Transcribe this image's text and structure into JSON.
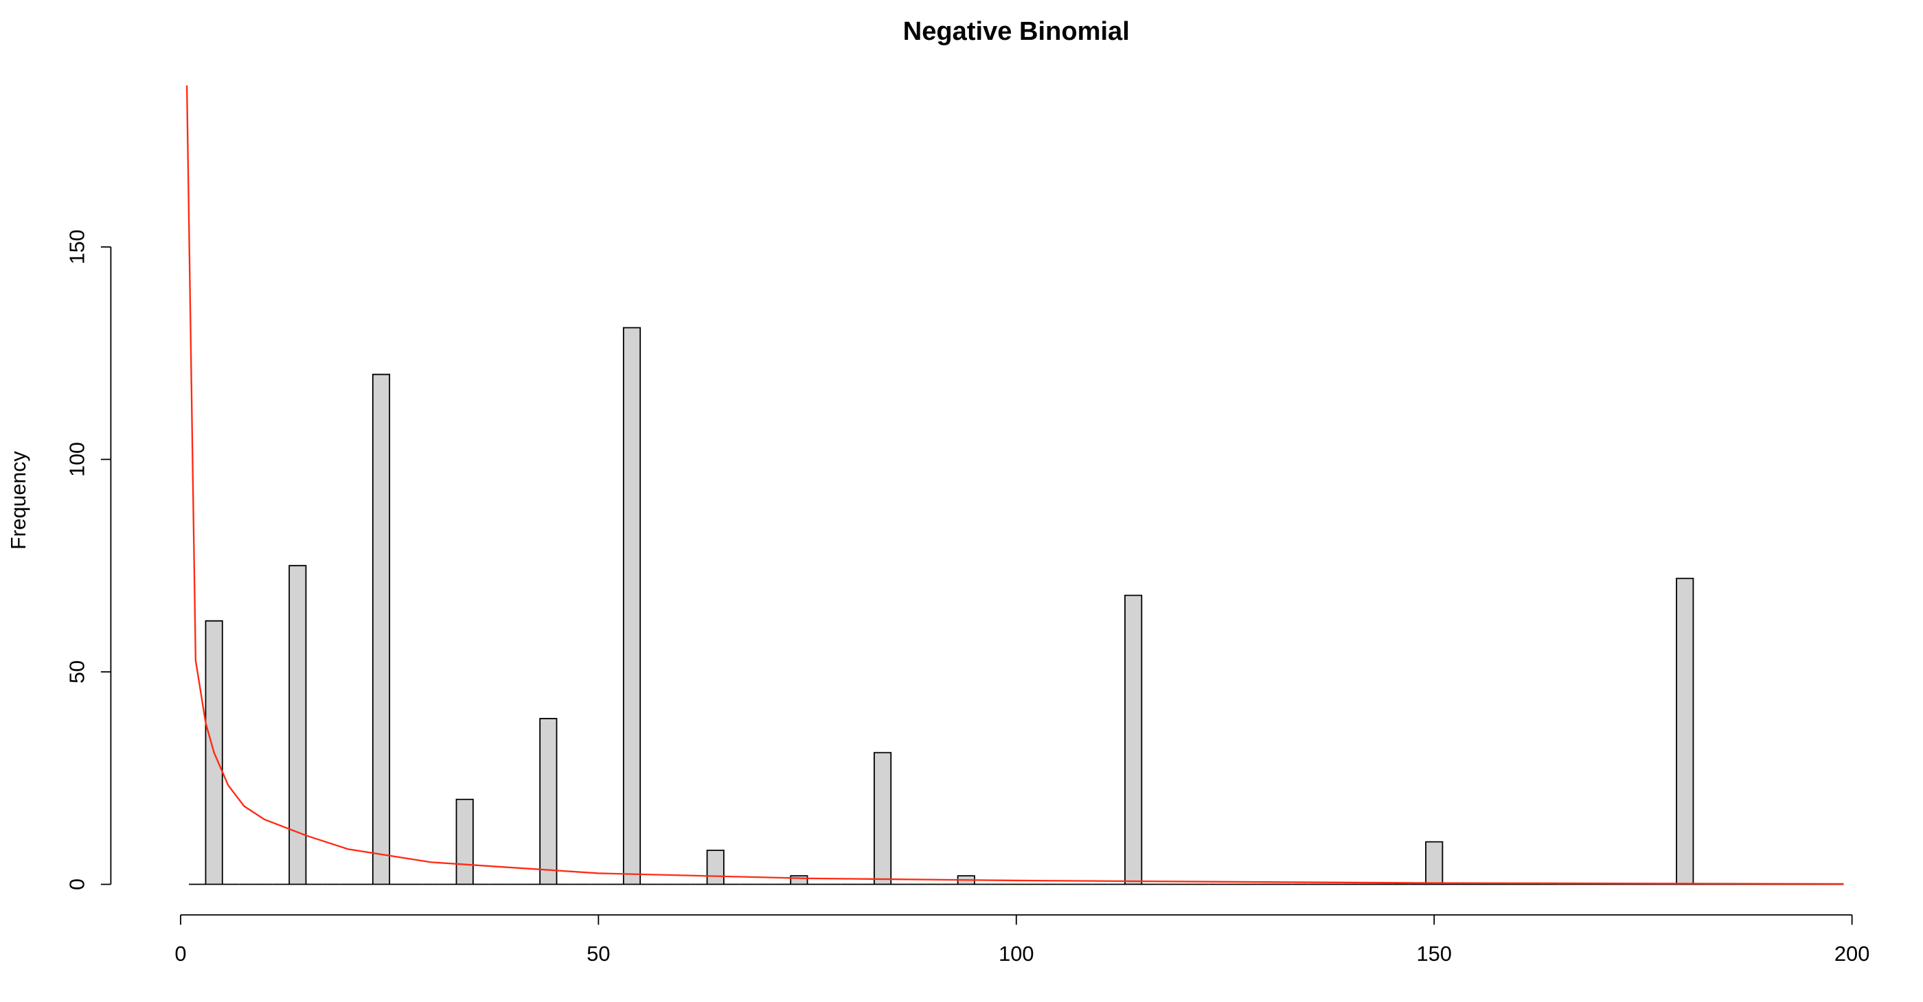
{
  "chart_data": {
    "type": "histogram",
    "title": "Negative Binomial",
    "ylabel": "Frequency",
    "bins": [
      1,
      3,
      5,
      7,
      9,
      11,
      13,
      15,
      17,
      19,
      21,
      23,
      25,
      27,
      29,
      31,
      33,
      35,
      37,
      39,
      41,
      43,
      45,
      47,
      49,
      51,
      53,
      55,
      57,
      59,
      61,
      63,
      65,
      67,
      69,
      71,
      73,
      75,
      77,
      79,
      81,
      83,
      85,
      87,
      89,
      91,
      93,
      95,
      97,
      99,
      101,
      103,
      105,
      107,
      109,
      111,
      113,
      115,
      117,
      119,
      121,
      123,
      125,
      127,
      129,
      131,
      133,
      135,
      137,
      139,
      141,
      143,
      145,
      147,
      149,
      151,
      153,
      155,
      157,
      159,
      161,
      163,
      165,
      167,
      169,
      171,
      173,
      175,
      177,
      179,
      181,
      183,
      185,
      187,
      189,
      191,
      193,
      195,
      197,
      199
    ],
    "counts": [
      0,
      62,
      0,
      0,
      0,
      0,
      75,
      0,
      0,
      0,
      0,
      120,
      0,
      0,
      0,
      0,
      20,
      0,
      0,
      0,
      0,
      39,
      0,
      0,
      0,
      0,
      131,
      0,
      0,
      0,
      0,
      8,
      0,
      0,
      0,
      0,
      2,
      0,
      0,
      0,
      0,
      31,
      0,
      0,
      0,
      0,
      2,
      0,
      0,
      0,
      0,
      0,
      0,
      0,
      0,
      0,
      68,
      0,
      0,
      0,
      0,
      0,
      0,
      0,
      0,
      0,
      0,
      0,
      0,
      0,
      0,
      0,
      0,
      0,
      10,
      0,
      0,
      0,
      0,
      0,
      0,
      0,
      0,
      0,
      0,
      0,
      0,
      0,
      0,
      72,
      0,
      0,
      0,
      0,
      0,
      0,
      0,
      0,
      0
    ],
    "color": "#d3d3d3",
    "xlim": [
      0,
      200
    ],
    "xticks": [
      0,
      50,
      100,
      150,
      200
    ],
    "ylim": [
      -7.2,
      188.2
    ],
    "yticks": [
      0,
      50,
      100,
      150
    ],
    "curve": {
      "type": "line",
      "color": "#ff2a12",
      "x": [
        0.75,
        1.8,
        3,
        4,
        5.7,
        7.6,
        10,
        15,
        20,
        30,
        50,
        75,
        100,
        150,
        199
      ],
      "values": [
        188,
        52.7,
        38,
        31,
        23.3,
        18.4,
        15.3,
        11.5,
        8.3,
        5.2,
        2.6,
        1.4,
        0.9,
        0.3,
        0.1
      ]
    }
  }
}
